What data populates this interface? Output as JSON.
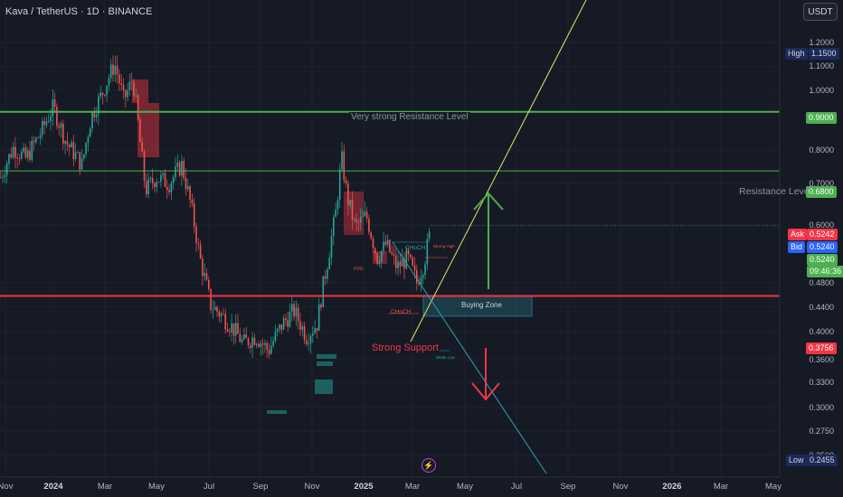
{
  "header": {
    "title": "Kava / TetherUS · 1D · BINANCE",
    "currency": "USDT"
  },
  "price_axis": {
    "labels": [
      "1.2000",
      "1.1000",
      "1.0000",
      "0.8000",
      "0.7000",
      "0.6000",
      "0.4800",
      "0.4400",
      "0.4000",
      "0.3600",
      "0.3300",
      "0.3000",
      "0.2750",
      "0.2500"
    ],
    "high_label": "High",
    "high_value": "1.1500",
    "low_label": "Low",
    "low_value": "0.2455",
    "ask_label": "Ask",
    "ask_value": "0.5242",
    "bid_label": "Bid",
    "bid_value": "0.5240",
    "last_price": "0.5240",
    "countdown": "09:46:36",
    "resistance_strong_value": "0.9000",
    "resistance_value": "0.6800",
    "support_value": "0.3756"
  },
  "time_axis": {
    "labels": [
      "Nov",
      "2024",
      "Mar",
      "May",
      "Jul",
      "Sep",
      "Nov",
      "2025",
      "Mar",
      "May",
      "Jul",
      "Sep",
      "Nov",
      "2026",
      "Mar",
      "May"
    ]
  },
  "annotations": {
    "very_strong_resistance": "Very strong Resistance Level",
    "resistance": "Resistance Level",
    "strong_support": "Strong Support",
    "buying_zone": "Buying Zone",
    "choch_top": "CHoCH",
    "choch_bottom": "CHoCH",
    "strong_high": "Strong High",
    "weak_low": "Weak Low",
    "fvg": "FVG"
  },
  "colors": {
    "background": "#161a25",
    "up_candle": "#26a69a",
    "down_candle": "#ef5350",
    "green_level": "#4caf50",
    "red_level": "#f23645",
    "trend_up": "#e6e66b",
    "trend_down": "#2ba1b4"
  },
  "icons": {
    "flash": "lightning-icon"
  },
  "chart_data": {
    "type": "candlestick",
    "x": [
      "Nov",
      "2024",
      "Mar",
      "May",
      "Jul",
      "Sep",
      "Nov",
      "2025",
      "Mar",
      "May",
      "Jul",
      "Sep",
      "Nov",
      "2026",
      "Mar",
      "May"
    ],
    "close_series_approx": [
      0.68,
      0.78,
      0.95,
      1.12,
      0.85,
      0.68,
      0.55,
      0.42,
      0.33,
      0.3,
      0.31,
      0.28,
      0.42,
      0.72,
      0.55,
      0.48,
      0.45,
      0.42,
      0.4,
      0.52
    ],
    "levels": [
      {
        "label": "Very strong Resistance Level",
        "value": 0.9
      },
      {
        "label": "Resistance Level",
        "value": 0.68
      },
      {
        "label": "Strong Support",
        "value": 0.3756
      }
    ],
    "ylim": [
      0.2455,
      1.2
    ],
    "yscale": "log",
    "last_price": 0.524
  }
}
